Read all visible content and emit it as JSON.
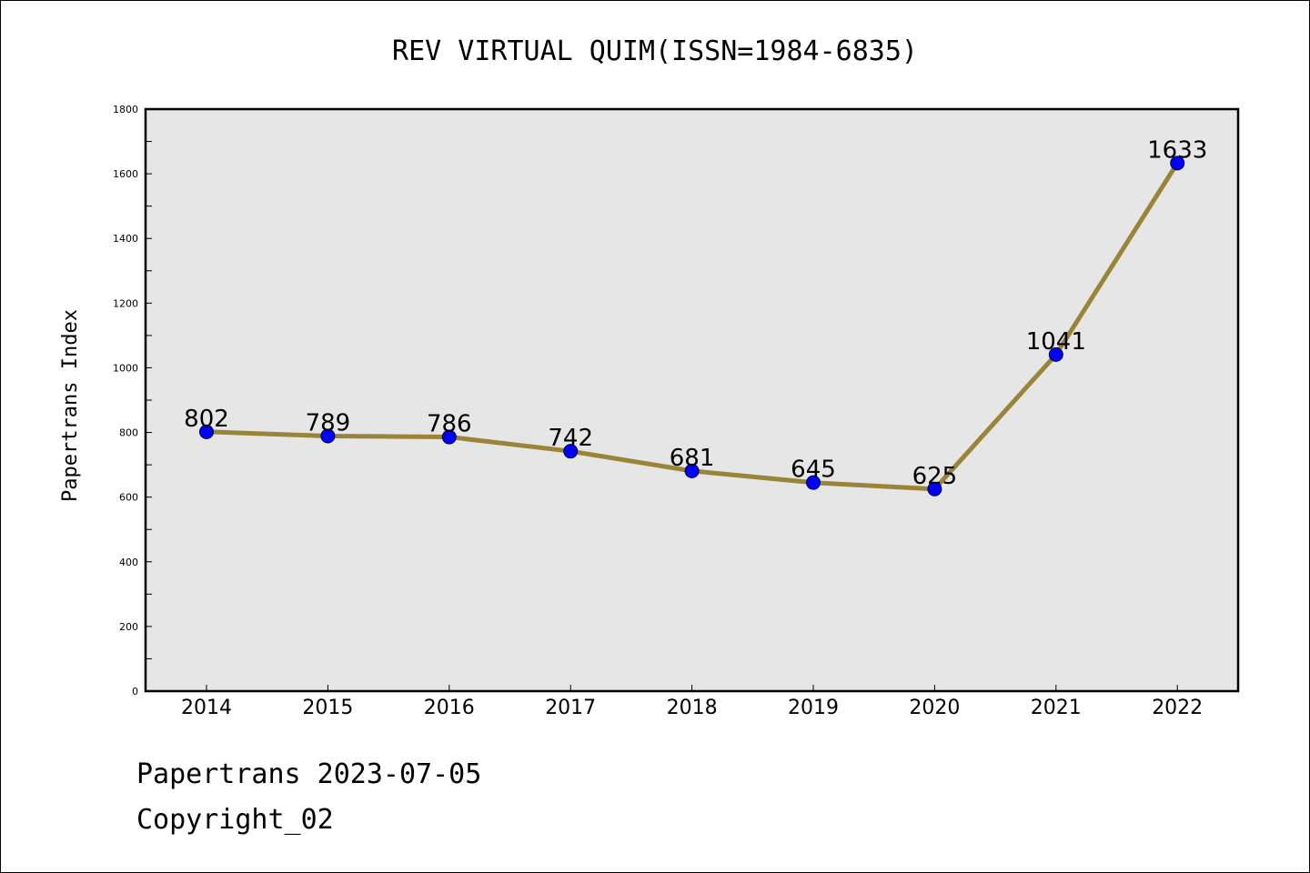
{
  "chart_data": {
    "type": "line",
    "title": "REV VIRTUAL QUIM(ISSN=1984-6835)",
    "xlabel": "",
    "ylabel": "Papertrans Index",
    "categories": [
      "2014",
      "2015",
      "2016",
      "2017",
      "2018",
      "2019",
      "2020",
      "2021",
      "2022"
    ],
    "values": [
      802,
      789,
      786,
      742,
      681,
      645,
      625,
      1041,
      1633
    ],
    "ylim": [
      0,
      1800
    ],
    "yticks": [
      0,
      200,
      400,
      600,
      800,
      1000,
      1200,
      1400,
      1600,
      1800
    ],
    "grid": false,
    "line_color": "#9a8437",
    "marker_color": "#0000ff",
    "plot_background": "#e6e6e6"
  },
  "footer": {
    "line1": "Papertrans 2023-07-05",
    "line2": "Copyright_02"
  }
}
